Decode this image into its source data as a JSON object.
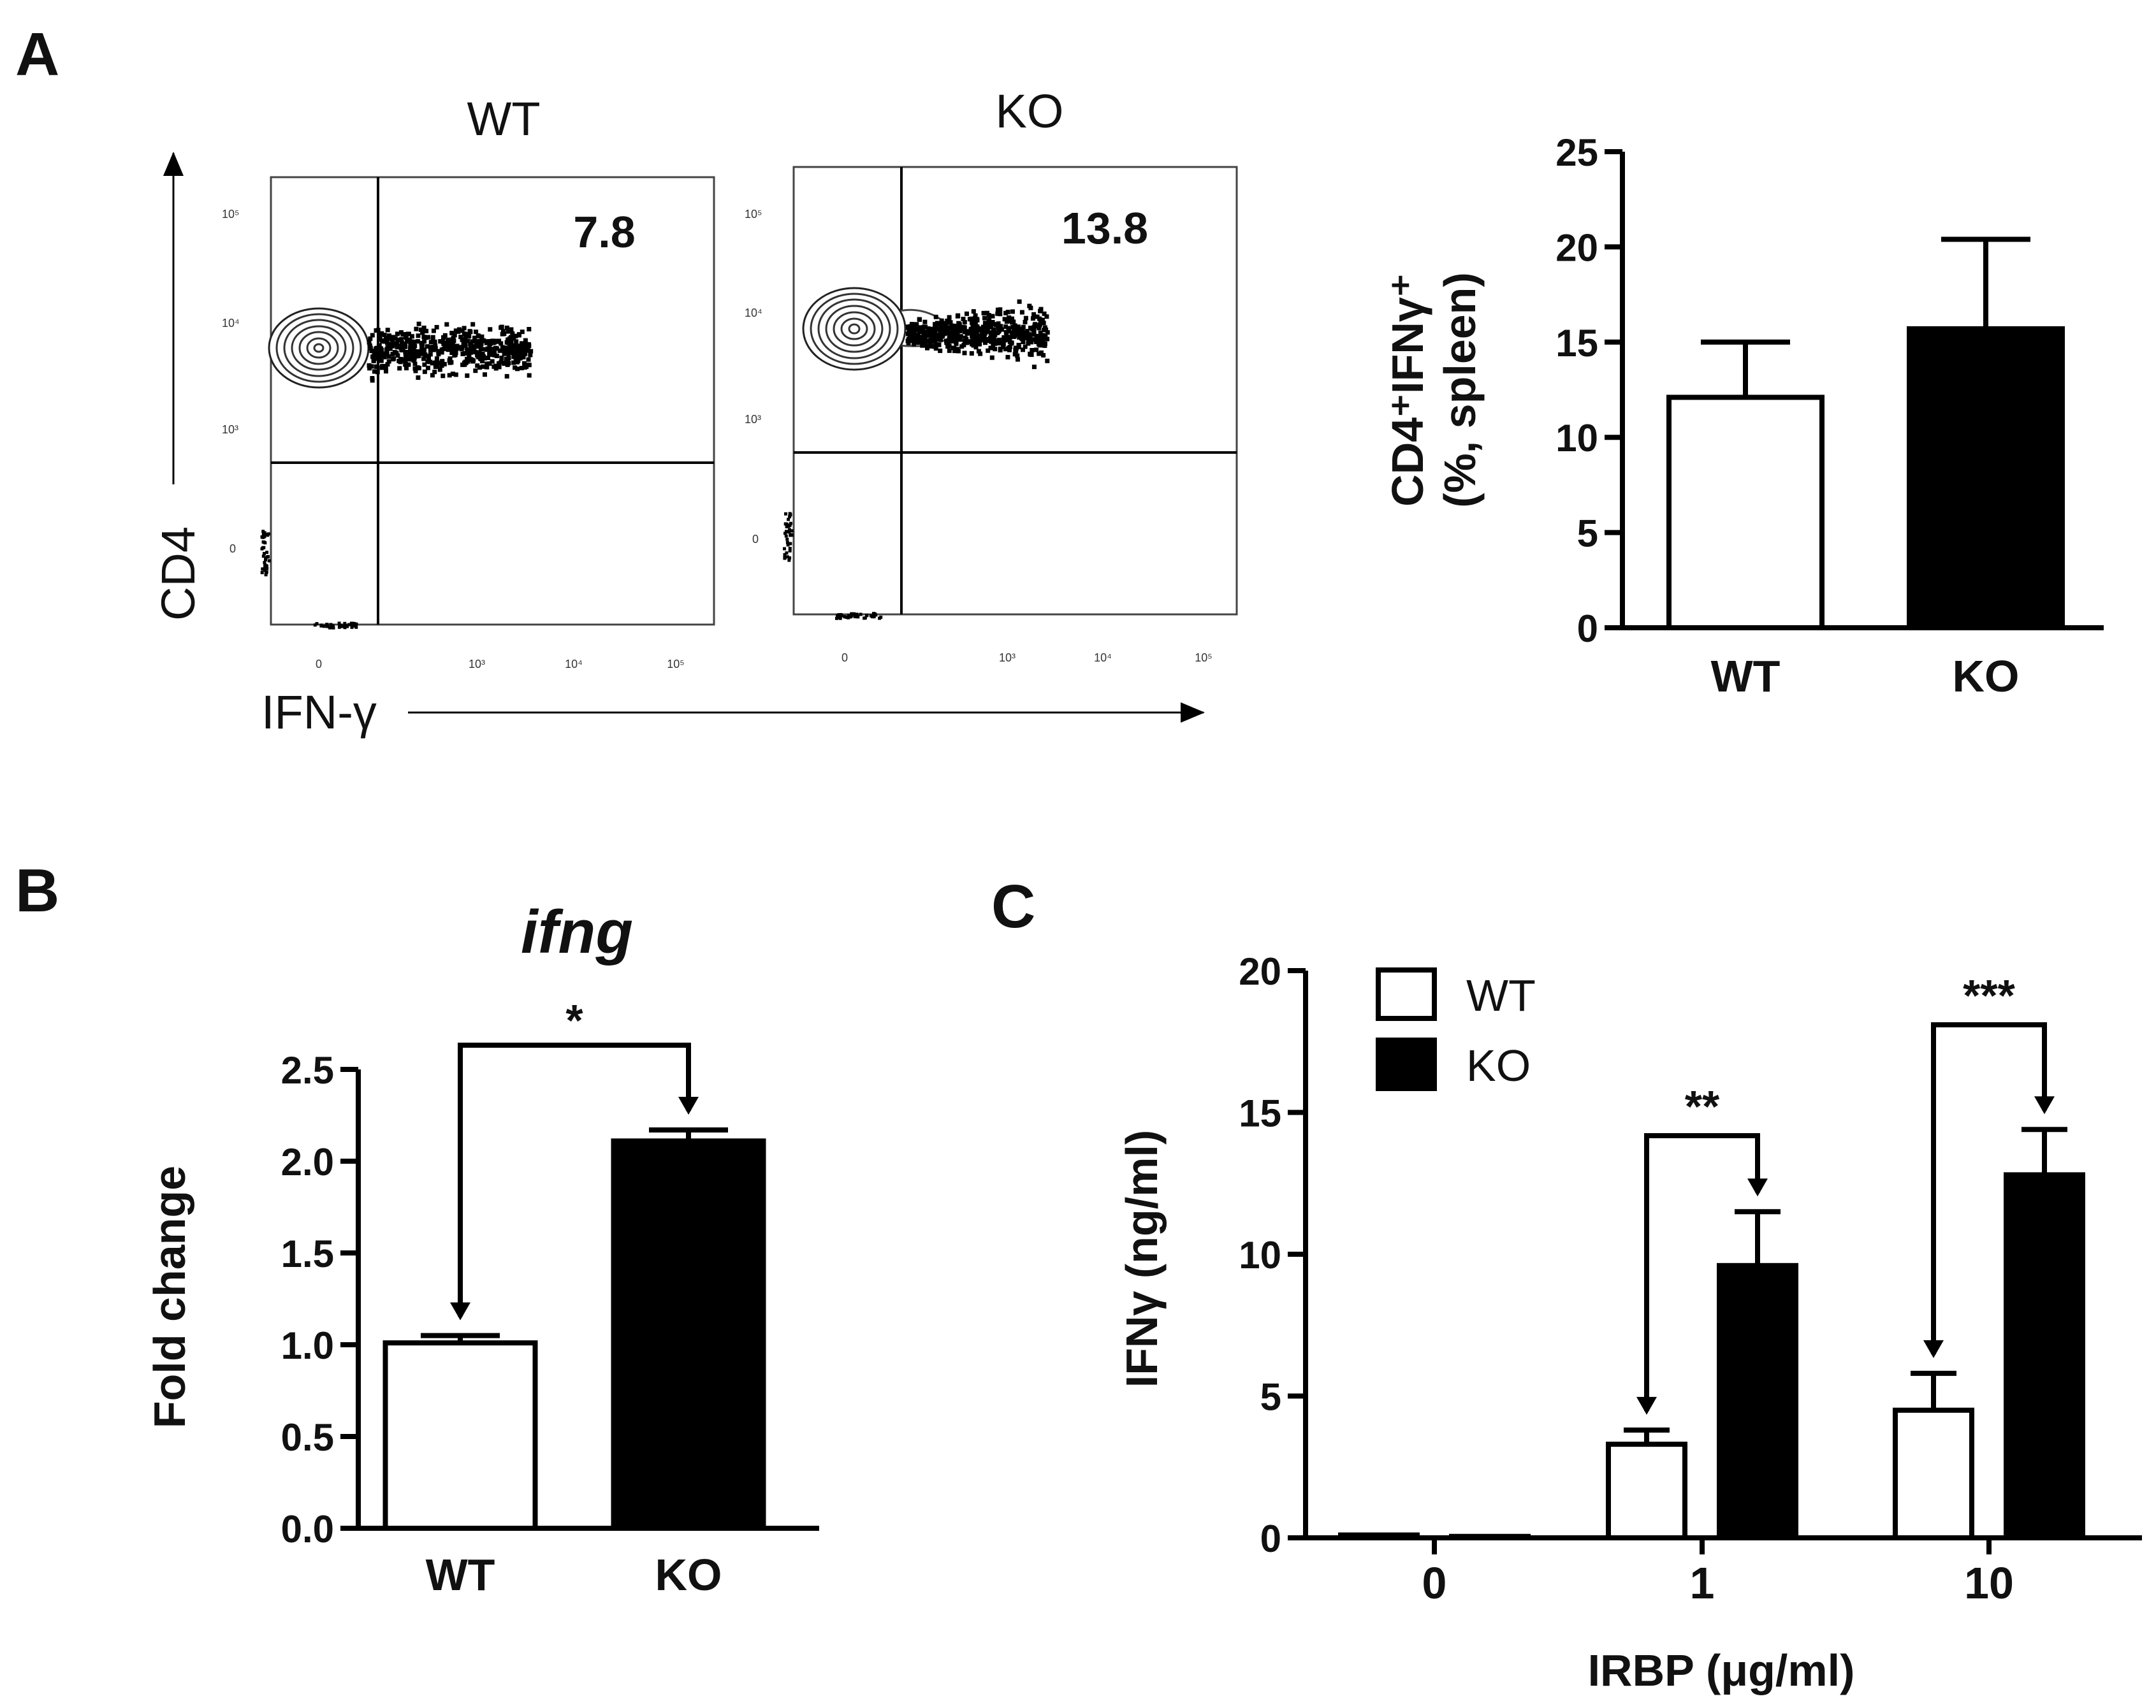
{
  "panels": {
    "a": "A",
    "b": "B",
    "c": "C"
  },
  "flow": {
    "titles": [
      "WT",
      "KO"
    ],
    "quadrant_values": [
      "7.8",
      "13.8"
    ],
    "y_axis_label": "CD4",
    "x_axis_label": "IFN-γ",
    "y_ticks": [
      "10⁵",
      "10⁴",
      "10³",
      "0"
    ],
    "x_ticks": [
      "0",
      "10³",
      "10⁴",
      "10⁵"
    ]
  },
  "colors": {
    "wt_fill": "#ffffff",
    "ko_fill": "#000000"
  },
  "chart_data": [
    {
      "type": "bar",
      "panel": "A",
      "categories": [
        "WT",
        "KO"
      ],
      "values": [
        12.1,
        15.7
      ],
      "errors": [
        2.9,
        4.7
      ],
      "ylabel": "CD4⁺IFNγ⁺ (%, spleen)",
      "ylabel_lines": [
        "CD4⁺IFNγ⁺",
        "(%, spleen)"
      ],
      "ylim": [
        0,
        25
      ],
      "yticks": [
        0,
        5,
        10,
        15,
        20,
        25
      ],
      "ytick_labels": [
        "0",
        "5",
        "10",
        "15",
        "20",
        "25"
      ]
    },
    {
      "type": "bar",
      "panel": "B",
      "title": "ifng",
      "categories": [
        "WT",
        "KO"
      ],
      "values": [
        1.01,
        2.11
      ],
      "errors": [
        0.04,
        0.06
      ],
      "ylabel": "Fold change",
      "ylim": [
        0,
        2.5
      ],
      "yticks": [
        0,
        0.5,
        1,
        1.5,
        2,
        2.5
      ],
      "ytick_labels": [
        "0.0",
        "0.5",
        "1.0",
        "1.5",
        "2.0",
        "2.5"
      ],
      "significance": [
        {
          "between": [
            "WT",
            "KO"
          ],
          "label": "*"
        }
      ]
    },
    {
      "type": "bar",
      "panel": "C",
      "categories": [
        "0",
        "1",
        "10"
      ],
      "xlabel": "IRBP (μg/ml)",
      "ylabel": "IFNγ (ng/ml)",
      "ylim": [
        0,
        20
      ],
      "yticks": [
        0,
        5,
        10,
        15,
        20
      ],
      "ytick_labels": [
        "0",
        "5",
        "10",
        "15",
        "20"
      ],
      "series": [
        {
          "name": "WT",
          "values": [
            0.1,
            3.3,
            4.5
          ],
          "errors": [
            0.0,
            0.5,
            1.3
          ]
        },
        {
          "name": "KO",
          "values": [
            0.05,
            9.6,
            12.8
          ],
          "errors": [
            0.0,
            1.9,
            1.6
          ]
        }
      ],
      "legend": [
        "WT",
        "KO"
      ],
      "significance": [
        {
          "category": "1",
          "label": "**"
        },
        {
          "category": "10",
          "label": "***"
        }
      ]
    }
  ]
}
